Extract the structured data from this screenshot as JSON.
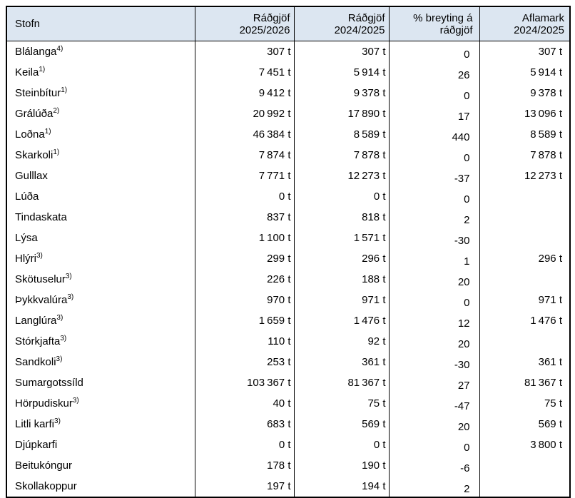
{
  "colors": {
    "header_bg": "#dce6f1",
    "border": "#000000",
    "text": "#000000",
    "page_bg": "#ffffff"
  },
  "table": {
    "columns": [
      {
        "label": "Stofn"
      },
      {
        "label": "Ráðgjöf\n2025/2026"
      },
      {
        "label": "Ráðgjöf\n2024/2025"
      },
      {
        "label": "% breyting á\nráðgjöf"
      },
      {
        "label": "Aflamark\n2024/2025"
      }
    ],
    "rows": [
      {
        "stofn": "Blálanga",
        "footnote": "4)",
        "advice_2025_2026": "307 t",
        "advice_2024_2025": "307 t",
        "pct_change": "0",
        "catch_limit_2024_2025": "307 t"
      },
      {
        "stofn": "Keila",
        "footnote": "1)",
        "advice_2025_2026": "7 451 t",
        "advice_2024_2025": "5 914 t",
        "pct_change": "26",
        "catch_limit_2024_2025": "5 914 t"
      },
      {
        "stofn": "Steinbítur",
        "footnote": "1)",
        "advice_2025_2026": "9 412 t",
        "advice_2024_2025": "9 378 t",
        "pct_change": "0",
        "catch_limit_2024_2025": "9 378 t"
      },
      {
        "stofn": "Grálúða",
        "footnote": "2)",
        "advice_2025_2026": "20 992 t",
        "advice_2024_2025": "17 890 t",
        "pct_change": "17",
        "catch_limit_2024_2025": "13 096 t"
      },
      {
        "stofn": "Loðna",
        "footnote": "1)",
        "advice_2025_2026": "46 384 t",
        "advice_2024_2025": "8 589 t",
        "pct_change": "440",
        "catch_limit_2024_2025": "8 589 t"
      },
      {
        "stofn": "Skarkoli",
        "footnote": "1)",
        "advice_2025_2026": "7 874 t",
        "advice_2024_2025": "7 878 t",
        "pct_change": "0",
        "catch_limit_2024_2025": "7 878 t"
      },
      {
        "stofn": "Gulllax",
        "footnote": "",
        "advice_2025_2026": "7 771 t",
        "advice_2024_2025": "12 273 t",
        "pct_change": "-37",
        "catch_limit_2024_2025": "12 273 t"
      },
      {
        "stofn": "Lúða",
        "footnote": "",
        "advice_2025_2026": "0 t",
        "advice_2024_2025": "0 t",
        "pct_change": "0",
        "catch_limit_2024_2025": ""
      },
      {
        "stofn": "Tindaskata",
        "footnote": "",
        "advice_2025_2026": "837 t",
        "advice_2024_2025": "818 t",
        "pct_change": "2",
        "catch_limit_2024_2025": ""
      },
      {
        "stofn": "Lýsa",
        "footnote": "",
        "advice_2025_2026": "1 100 t",
        "advice_2024_2025": "1 571 t",
        "pct_change": "-30",
        "catch_limit_2024_2025": ""
      },
      {
        "stofn": "Hlýri",
        "footnote": "3)",
        "advice_2025_2026": "299 t",
        "advice_2024_2025": "296 t",
        "pct_change": "1",
        "catch_limit_2024_2025": "296 t"
      },
      {
        "stofn": "Skötuselur",
        "footnote": "3)",
        "advice_2025_2026": "226 t",
        "advice_2024_2025": "188 t",
        "pct_change": "20",
        "catch_limit_2024_2025": ""
      },
      {
        "stofn": "Þykkvalúra",
        "footnote": "3)",
        "advice_2025_2026": "970 t",
        "advice_2024_2025": "971 t",
        "pct_change": "0",
        "catch_limit_2024_2025": "971 t"
      },
      {
        "stofn": "Langlúra",
        "footnote": "3)",
        "advice_2025_2026": "1 659 t",
        "advice_2024_2025": "1 476 t",
        "pct_change": "12",
        "catch_limit_2024_2025": "1 476 t"
      },
      {
        "stofn": "Stórkjafta",
        "footnote": "3)",
        "advice_2025_2026": "110 t",
        "advice_2024_2025": "92 t",
        "pct_change": "20",
        "catch_limit_2024_2025": ""
      },
      {
        "stofn": "Sandkoli",
        "footnote": "3)",
        "advice_2025_2026": "253 t",
        "advice_2024_2025": "361 t",
        "pct_change": "-30",
        "catch_limit_2024_2025": "361 t"
      },
      {
        "stofn": "Sumargotssíld",
        "footnote": "",
        "advice_2025_2026": "103 367 t",
        "advice_2024_2025": "81 367 t",
        "pct_change": "27",
        "catch_limit_2024_2025": "81 367 t"
      },
      {
        "stofn": "Hörpudiskur",
        "footnote": "3)",
        "advice_2025_2026": "40 t",
        "advice_2024_2025": "75 t",
        "pct_change": "-47",
        "catch_limit_2024_2025": "75 t"
      },
      {
        "stofn": "Litli karfi",
        "footnote": "3)",
        "advice_2025_2026": "683 t",
        "advice_2024_2025": "569 t",
        "pct_change": "20",
        "catch_limit_2024_2025": "569 t"
      },
      {
        "stofn": "Djúpkarfi",
        "footnote": "",
        "advice_2025_2026": "0 t",
        "advice_2024_2025": "0 t",
        "pct_change": "0",
        "catch_limit_2024_2025": "3 800 t"
      },
      {
        "stofn": "Beitukóngur",
        "footnote": "",
        "advice_2025_2026": "178 t",
        "advice_2024_2025": "190 t",
        "pct_change": "-6",
        "catch_limit_2024_2025": ""
      },
      {
        "stofn": "Skollakoppur",
        "footnote": "",
        "advice_2025_2026": "197 t",
        "advice_2024_2025": "194 t",
        "pct_change": "2",
        "catch_limit_2024_2025": ""
      }
    ]
  }
}
